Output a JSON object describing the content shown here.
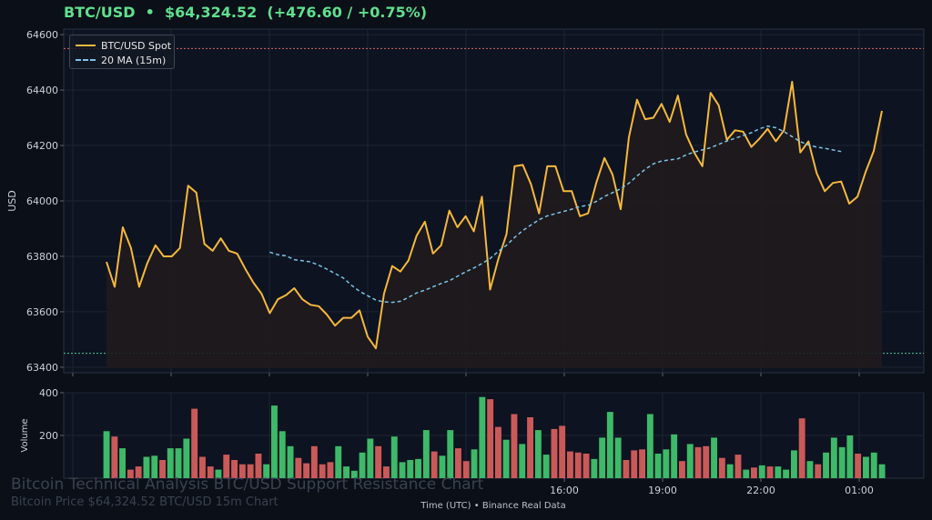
{
  "header": {
    "symbol": "BTC/USD",
    "separator": "•",
    "price": "$64,324.52",
    "change": "(+476.60 / +0.75%)"
  },
  "colors": {
    "price_line": "#f5b83d",
    "ma_line": "#7cc3ea",
    "volume_up": "#3fb86a",
    "volume_down": "#c95a5a",
    "resistance": "#d46a6a",
    "support": "#4fc79a"
  },
  "watermark": {
    "title": "Bitcoin Technical Analysis BTC/USD Support Resistance Chart",
    "subtitle": "Bitcoin Price $64,324.52 BTC/USD 15m Chart"
  },
  "footer": {
    "left": "Time (UTC)",
    "separator": "•",
    "right": "Binance Real Data"
  },
  "chart_data": [
    {
      "type": "line",
      "ylabel": "USD",
      "ylim": [
        63380,
        64620
      ],
      "yticks": [
        63400,
        63600,
        63800,
        64000,
        64200,
        64400,
        64600
      ],
      "grid": true,
      "legend": "top-left",
      "resistance_level": 64550,
      "support_level": 63450,
      "series": [
        {
          "name": "BTC/USD Spot",
          "x_start_index": 0,
          "values": [
            63780,
            63690,
            63905,
            63830,
            63690,
            63775,
            63840,
            63800,
            63800,
            63830,
            64055,
            64030,
            63845,
            63820,
            63865,
            63820,
            63810,
            63755,
            63705,
            63665,
            63595,
            63645,
            63660,
            63685,
            63645,
            63625,
            63620,
            63590,
            63550,
            63578,
            63578,
            63605,
            63510,
            63468,
            63665,
            63765,
            63745,
            63785,
            63875,
            63925,
            63810,
            63840,
            63965,
            63905,
            63945,
            63890,
            64015,
            63680,
            63790,
            63880,
            64125,
            64130,
            64060,
            63955,
            64125,
            64125,
            64035,
            64035,
            63945,
            63955,
            64065,
            64155,
            64095,
            63970,
            64230,
            64365,
            64295,
            64300,
            64350,
            64285,
            64380,
            64240,
            64175,
            64125,
            64390,
            64345,
            64220,
            64255,
            64250,
            64195,
            64225,
            64260,
            64215,
            64255,
            64430,
            64175,
            64215,
            64100,
            64035,
            64065,
            64070,
            63990,
            64015,
            64105,
            64180,
            64325
          ]
        },
        {
          "name": "20 MA (15m)",
          "x_start_index": 20,
          "values": [
            63815,
            63806,
            63802,
            63788,
            63784,
            63780,
            63768,
            63754,
            63738,
            63722,
            63696,
            63674,
            63658,
            63642,
            63636,
            63634,
            63638,
            63652,
            63668,
            63678,
            63690,
            63702,
            63712,
            63728,
            63744,
            63758,
            63774,
            63792,
            63818,
            63840,
            63868,
            63893,
            63913,
            63932,
            63946,
            63954,
            63962,
            63970,
            63980,
            63984,
            63998,
            64016,
            64030,
            64044,
            64064,
            64090,
            64114,
            64134,
            64144,
            64148,
            64152,
            64166,
            64176,
            64184,
            64192,
            64204,
            64216,
            64226,
            64236,
            64246,
            64260,
            64270,
            64264,
            64250,
            64232,
            64214,
            64202,
            64194,
            64190,
            64184,
            64178
          ]
        }
      ]
    },
    {
      "type": "bar",
      "ylabel": "Volume",
      "ylim": [
        0,
        400
      ],
      "yticks": [
        200,
        400
      ],
      "xlabel": "Time (UTC)",
      "xticks": [
        "16:00",
        "19:00",
        "22:00",
        "01:00"
      ],
      "grid": true,
      "values": [
        220,
        195,
        140,
        40,
        55,
        100,
        105,
        85,
        140,
        140,
        185,
        325,
        100,
        55,
        40,
        110,
        85,
        65,
        65,
        115,
        65,
        340,
        220,
        150,
        95,
        70,
        150,
        65,
        75,
        150,
        55,
        35,
        120,
        185,
        150,
        55,
        195,
        75,
        85,
        90,
        225,
        125,
        105,
        225,
        140,
        80,
        135,
        380,
        370,
        240,
        180,
        300,
        160,
        285,
        225,
        110,
        230,
        245,
        125,
        120,
        115,
        90,
        190,
        310,
        190,
        85,
        130,
        135,
        300,
        115,
        135,
        205,
        80,
        160,
        145,
        150,
        190,
        95,
        65,
        110,
        40,
        50,
        60,
        55,
        55,
        40,
        130,
        280,
        80,
        65,
        120,
        190,
        145,
        200,
        115,
        100,
        120,
        65
      ],
      "direction": [
        "up",
        "down",
        "up",
        "down",
        "down",
        "up",
        "up",
        "down",
        "up",
        "up",
        "up",
        "down",
        "down",
        "down",
        "up",
        "down",
        "down",
        "down",
        "down",
        "down",
        "up",
        "up",
        "up",
        "up",
        "down",
        "down",
        "down",
        "down",
        "down",
        "up",
        "up",
        "up",
        "up",
        "up",
        "down",
        "down",
        "up",
        "up",
        "up",
        "up",
        "up",
        "down",
        "up",
        "up",
        "down",
        "down",
        "up",
        "up",
        "down",
        "down",
        "up",
        "down",
        "up",
        "down",
        "up",
        "up",
        "down",
        "down",
        "down",
        "down",
        "down",
        "up",
        "up",
        "up",
        "up",
        "down",
        "down",
        "down",
        "up",
        "up",
        "up",
        "up",
        "down",
        "up",
        "down",
        "down",
        "up",
        "down",
        "up",
        "down",
        "up",
        "down",
        "up",
        "down",
        "up",
        "up",
        "up",
        "down",
        "up",
        "down",
        "up",
        "up",
        "up",
        "up",
        "down",
        "up",
        "up",
        "up"
      ]
    }
  ]
}
